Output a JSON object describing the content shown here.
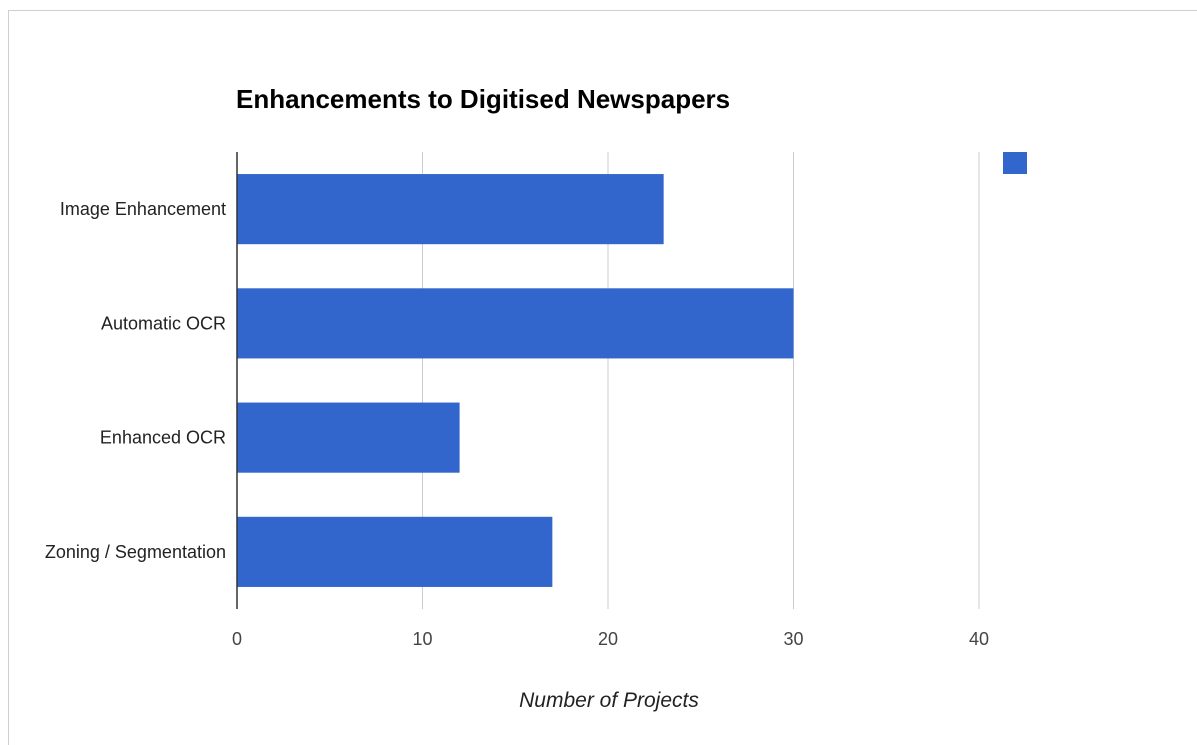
{
  "chart_data": {
    "type": "bar",
    "orientation": "horizontal",
    "title": "Enhancements to Digitised Newspapers",
    "xlabel": "Number of Projects",
    "ylabel": "",
    "categories": [
      "Image Enhancement",
      "Automatic OCR",
      "Enhanced OCR",
      "Zoning / Segmentation"
    ],
    "series": [
      {
        "values": [
          23,
          30,
          12,
          17
        ],
        "color": "#3366cc"
      }
    ],
    "xlim": [
      0,
      40
    ],
    "x_ticks": [
      0,
      10,
      20,
      30,
      40
    ],
    "x_tick_labels": [
      "0",
      "10",
      "20",
      "30",
      "40"
    ],
    "grid": true,
    "legend": "top-right"
  }
}
